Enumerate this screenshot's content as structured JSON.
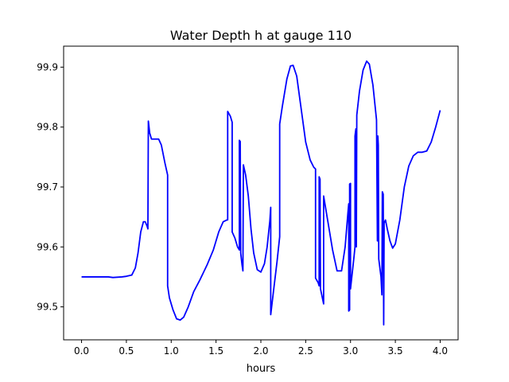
{
  "chart_data": {
    "type": "line",
    "title": "Water Depth h at gauge 110",
    "xlabel": "hours",
    "ylabel": "",
    "xlim": [
      -0.2,
      4.2
    ],
    "ylim": [
      99.445,
      99.935
    ],
    "xticks": [
      0.0,
      0.5,
      1.0,
      1.5,
      2.0,
      2.5,
      3.0,
      3.5,
      4.0
    ],
    "xtick_labels": [
      "0.0",
      "0.5",
      "1.0",
      "1.5",
      "2.0",
      "2.5",
      "3.0",
      "3.5",
      "4.0"
    ],
    "yticks": [
      99.5,
      99.6,
      99.7,
      99.8,
      99.9
    ],
    "ytick_labels": [
      "99.5",
      "99.6",
      "99.7",
      "99.8",
      "99.9"
    ],
    "grid": false,
    "legend": "none",
    "series": [
      {
        "color": "#0000ff",
        "points": [
          [
            0.0,
            99.55
          ],
          [
            0.1,
            99.55
          ],
          [
            0.2,
            99.55
          ],
          [
            0.3,
            99.55
          ],
          [
            0.35,
            99.549
          ],
          [
            0.45,
            99.55
          ],
          [
            0.5,
            99.551
          ],
          [
            0.56,
            99.553
          ],
          [
            0.6,
            99.565
          ],
          [
            0.63,
            99.59
          ],
          [
            0.66,
            99.625
          ],
          [
            0.69,
            99.642
          ],
          [
            0.71,
            99.642
          ],
          [
            0.73,
            99.635
          ],
          [
            0.74,
            99.63
          ],
          [
            0.745,
            99.81
          ],
          [
            0.76,
            99.79
          ],
          [
            0.78,
            99.78
          ],
          [
            0.81,
            99.78
          ],
          [
            0.86,
            99.78
          ],
          [
            0.89,
            99.77
          ],
          [
            0.93,
            99.74
          ],
          [
            0.96,
            99.72
          ],
          [
            0.96,
            99.535
          ],
          [
            0.98,
            99.515
          ],
          [
            1.02,
            99.495
          ],
          [
            1.06,
            99.48
          ],
          [
            1.1,
            99.478
          ],
          [
            1.14,
            99.483
          ],
          [
            1.19,
            99.5
          ],
          [
            1.25,
            99.525
          ],
          [
            1.32,
            99.545
          ],
          [
            1.4,
            99.57
          ],
          [
            1.47,
            99.595
          ],
          [
            1.53,
            99.625
          ],
          [
            1.58,
            99.642
          ],
          [
            1.62,
            99.645
          ],
          [
            1.63,
            99.645
          ],
          [
            1.63,
            99.826
          ],
          [
            1.66,
            99.818
          ],
          [
            1.68,
            99.808
          ],
          [
            1.68,
            99.625
          ],
          [
            1.71,
            99.615
          ],
          [
            1.74,
            99.6
          ],
          [
            1.76,
            99.595
          ],
          [
            1.76,
            99.778
          ],
          [
            1.77,
            99.776
          ],
          [
            1.775,
            99.59
          ],
          [
            1.79,
            99.57
          ],
          [
            1.8,
            99.56
          ],
          [
            1.805,
            99.737
          ],
          [
            1.83,
            99.72
          ],
          [
            1.86,
            99.685
          ],
          [
            1.89,
            99.63
          ],
          [
            1.92,
            99.59
          ],
          [
            1.96,
            99.562
          ],
          [
            2.0,
            99.558
          ],
          [
            2.04,
            99.572
          ],
          [
            2.07,
            99.6
          ],
          [
            2.1,
            99.643
          ],
          [
            2.11,
            99.666
          ],
          [
            2.11,
            99.487
          ],
          [
            2.14,
            99.525
          ],
          [
            2.18,
            99.575
          ],
          [
            2.21,
            99.617
          ],
          [
            2.21,
            99.805
          ],
          [
            2.24,
            99.835
          ],
          [
            2.29,
            99.88
          ],
          [
            2.33,
            99.902
          ],
          [
            2.36,
            99.903
          ],
          [
            2.4,
            99.885
          ],
          [
            2.45,
            99.83
          ],
          [
            2.5,
            99.775
          ],
          [
            2.55,
            99.745
          ],
          [
            2.59,
            99.733
          ],
          [
            2.61,
            99.73
          ],
          [
            2.61,
            99.548
          ],
          [
            2.64,
            99.54
          ],
          [
            2.65,
            99.535
          ],
          [
            2.65,
            99.717
          ],
          [
            2.66,
            99.713
          ],
          [
            2.665,
            99.53
          ],
          [
            2.7,
            99.505
          ],
          [
            2.7,
            99.685
          ],
          [
            2.75,
            99.64
          ],
          [
            2.8,
            99.595
          ],
          [
            2.85,
            99.56
          ],
          [
            2.9,
            99.56
          ],
          [
            2.94,
            99.6
          ],
          [
            2.97,
            99.655
          ],
          [
            2.98,
            99.672
          ],
          [
            2.98,
            99.493
          ],
          [
            2.99,
            99.495
          ],
          [
            2.99,
            99.705
          ],
          [
            3.0,
            99.706
          ],
          [
            3.0,
            99.53
          ],
          [
            3.04,
            99.585
          ],
          [
            3.05,
            99.6
          ],
          [
            3.05,
            99.785
          ],
          [
            3.06,
            99.797
          ],
          [
            3.065,
            99.6
          ],
          [
            3.07,
            99.82
          ],
          [
            3.1,
            99.86
          ],
          [
            3.14,
            99.895
          ],
          [
            3.18,
            99.91
          ],
          [
            3.21,
            99.905
          ],
          [
            3.25,
            99.87
          ],
          [
            3.29,
            99.812
          ],
          [
            3.3,
            99.61
          ],
          [
            3.305,
            99.785
          ],
          [
            3.31,
            99.77
          ],
          [
            3.315,
            99.58
          ],
          [
            3.34,
            99.55
          ],
          [
            3.35,
            99.52
          ],
          [
            3.355,
            99.692
          ],
          [
            3.365,
            99.688
          ],
          [
            3.37,
            99.47
          ],
          [
            3.375,
            99.64
          ],
          [
            3.39,
            99.645
          ],
          [
            3.41,
            99.63
          ],
          [
            3.44,
            99.61
          ],
          [
            3.47,
            99.598
          ],
          [
            3.5,
            99.605
          ],
          [
            3.55,
            99.645
          ],
          [
            3.6,
            99.7
          ],
          [
            3.65,
            99.735
          ],
          [
            3.7,
            99.752
          ],
          [
            3.75,
            99.758
          ],
          [
            3.8,
            99.758
          ],
          [
            3.85,
            99.76
          ],
          [
            3.9,
            99.775
          ],
          [
            3.95,
            99.8
          ],
          [
            4.0,
            99.828
          ]
        ]
      }
    ]
  }
}
